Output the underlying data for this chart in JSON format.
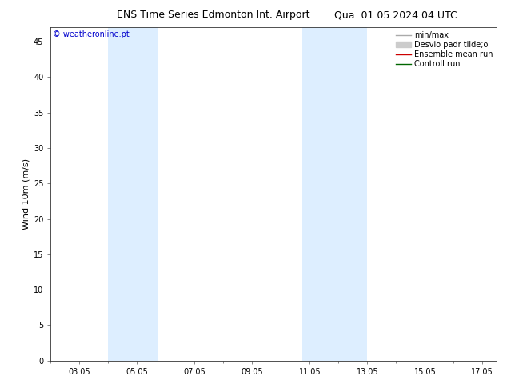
{
  "title_left": "ENS Time Series Edmonton Int. Airport",
  "title_right": "Qua. 01.05.2024 04 UTC",
  "ylabel": "Wind 10m (m/s)",
  "watermark": "© weatheronline.pt",
  "xlim_start": 2.0,
  "xlim_end": 17.5,
  "ylim_bottom": 0,
  "ylim_top": 47,
  "yticks": [
    0,
    5,
    10,
    15,
    20,
    25,
    30,
    35,
    40,
    45
  ],
  "xtick_labels": [
    "03.05",
    "05.05",
    "07.05",
    "09.05",
    "11.05",
    "13.05",
    "15.05",
    "17.05"
  ],
  "xtick_positions": [
    3,
    5,
    7,
    9,
    11,
    13,
    15,
    17
  ],
  "shaded_bands": [
    {
      "xmin": 4.0,
      "xmax": 5.75
    },
    {
      "xmin": 10.75,
      "xmax": 13.0
    }
  ],
  "shade_color": "#ddeeff",
  "background_color": "#ffffff",
  "legend_items": [
    {
      "label": "min/max",
      "color": "#aaaaaa",
      "lw": 1.0,
      "style": "-",
      "type": "line"
    },
    {
      "label": "Desvio padr tilde;o",
      "color": "#cccccc",
      "lw": 5,
      "style": "-",
      "type": "patch"
    },
    {
      "label": "Ensemble mean run",
      "color": "#cc0000",
      "lw": 1.0,
      "style": "-",
      "type": "line"
    },
    {
      "label": "Controll run",
      "color": "#006600",
      "lw": 1.0,
      "style": "-",
      "type": "line"
    }
  ],
  "title_fontsize": 9,
  "watermark_color": "#0000cc",
  "watermark_fontsize": 7,
  "tick_fontsize": 7,
  "ylabel_fontsize": 8,
  "legend_fontsize": 7
}
